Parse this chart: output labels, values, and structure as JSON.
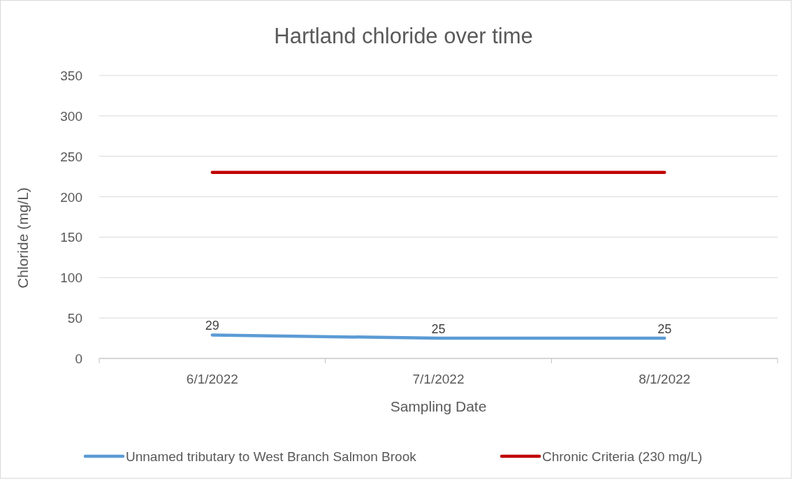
{
  "chart_data": {
    "type": "line",
    "title": "Hartland chloride over time",
    "xlabel": "Sampling Date",
    "ylabel": "Chloride (mg/L)",
    "categories": [
      "6/1/2022",
      "7/1/2022",
      "8/1/2022"
    ],
    "series": [
      {
        "name": "Unnamed tributary to West Branch Salmon Brook",
        "color": "#5b9bd5",
        "values": [
          29,
          25,
          25
        ],
        "value_labels": [
          "29",
          "25",
          "25"
        ]
      },
      {
        "name": "Chronic Criteria (230 mg/L)",
        "color": "#c00000",
        "values": [
          230,
          230,
          230
        ]
      }
    ],
    "ylim": [
      0,
      350
    ],
    "yticks": [
      0,
      50,
      100,
      150,
      200,
      250,
      300,
      350
    ],
    "grid": "y",
    "legend": "bottom",
    "marker": "none",
    "line_style": "solid"
  }
}
